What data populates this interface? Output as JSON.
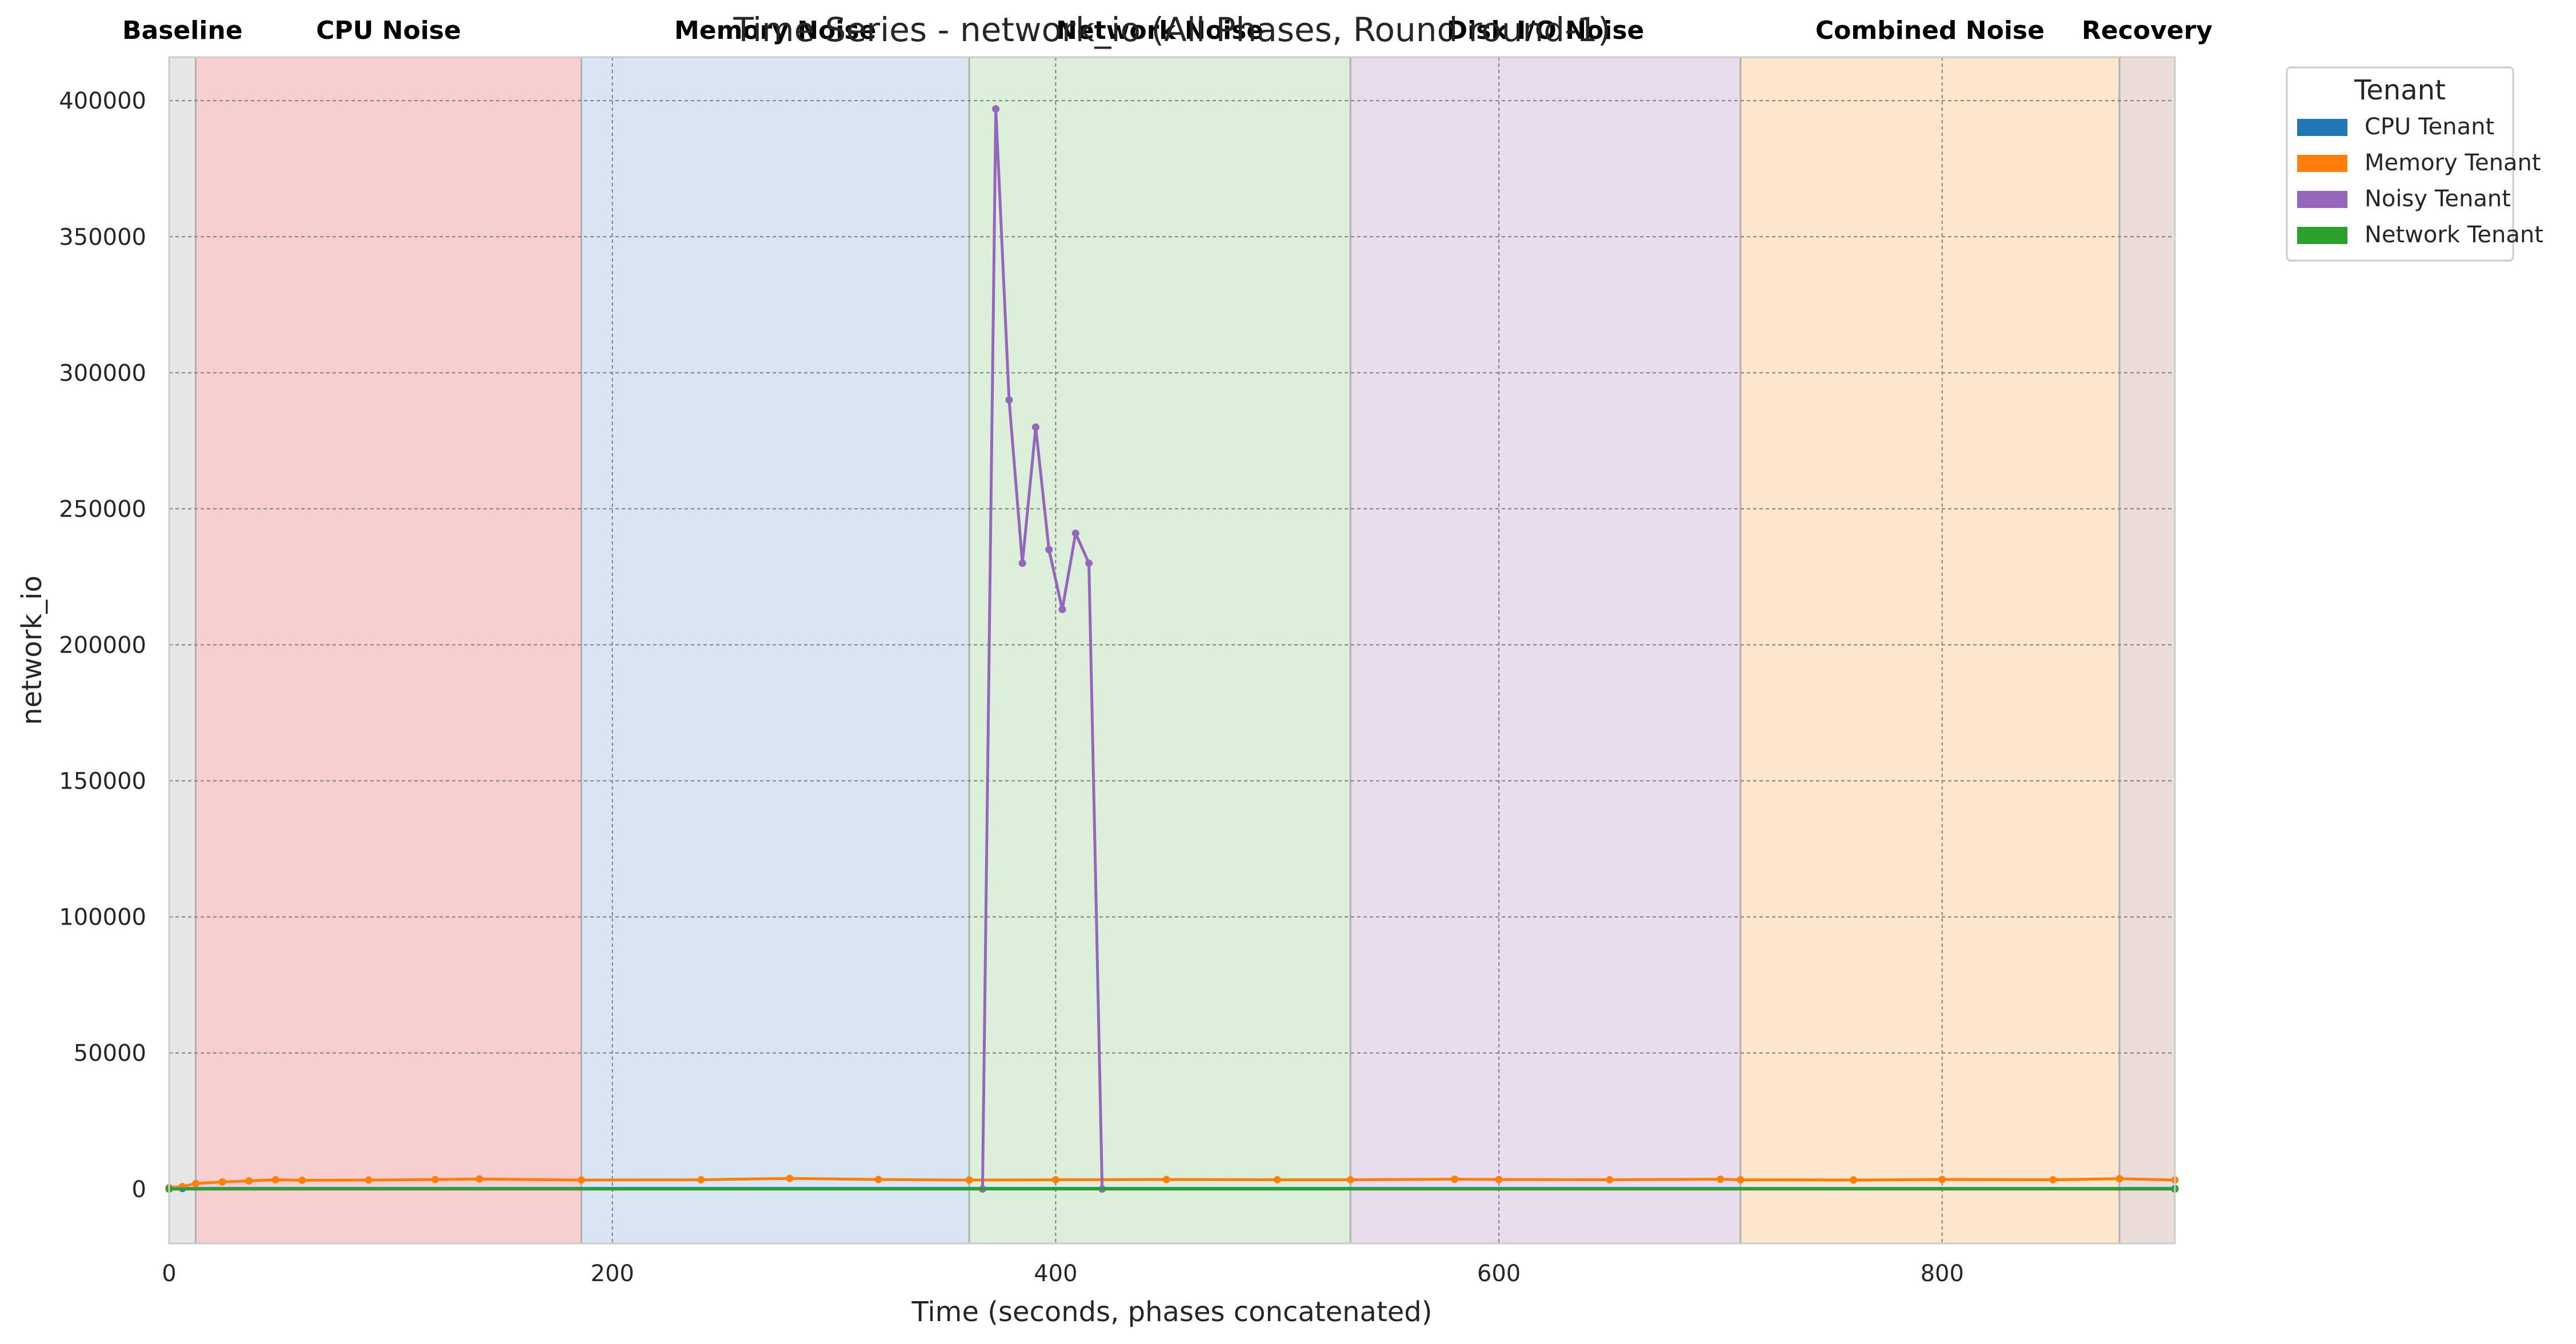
{
  "chart_data": {
    "type": "line",
    "title": "Time Series - network_io (All Phases, Round round-1)",
    "xlabel": "Time (seconds, phases concatenated)",
    "ylabel": "network_io",
    "xlim": [
      0,
      905
    ],
    "ylim": [
      -20000,
      416000
    ],
    "xticks": [
      0,
      200,
      400,
      600,
      800
    ],
    "yticks": [
      0,
      50000,
      100000,
      150000,
      200000,
      250000,
      300000,
      350000,
      400000
    ],
    "grid": true,
    "legend": {
      "title": "Tenant",
      "placement": "outside-top-right"
    },
    "phases": [
      {
        "name": "Baseline",
        "start": 0,
        "end": 12,
        "color": "#d9d9d9"
      },
      {
        "name": "CPU Noise",
        "start": 12,
        "end": 186,
        "color": "#f4b6b6"
      },
      {
        "name": "Memory Noise",
        "start": 186,
        "end": 361,
        "color": "#c2d8eb"
      },
      {
        "name": "Network Noise",
        "start": 361,
        "end": 533,
        "color": "#c8e6c5"
      },
      {
        "name": "Disk I/O Noise",
        "start": 533,
        "end": 709,
        "color": "#dcc9e4"
      },
      {
        "name": "Combined Noise",
        "start": 709,
        "end": 880,
        "color": "#fdd8b1"
      },
      {
        "name": "Recovery",
        "start": 880,
        "end": 905,
        "color": "#e2cbc3"
      }
    ],
    "series": [
      {
        "name": "CPU Tenant",
        "color": "#1f77b4",
        "points": [
          [
            0,
            0
          ],
          [
            6,
            200
          ],
          [
            905,
            200
          ]
        ]
      },
      {
        "name": "Memory Tenant",
        "color": "#ff7f0e",
        "points": [
          [
            0,
            500
          ],
          [
            6,
            900
          ],
          [
            12,
            2000
          ],
          [
            24,
            2600
          ],
          [
            36,
            3000
          ],
          [
            48,
            3400
          ],
          [
            60,
            3200
          ],
          [
            90,
            3300
          ],
          [
            120,
            3500
          ],
          [
            140,
            3700
          ],
          [
            186,
            3300
          ],
          [
            240,
            3400
          ],
          [
            280,
            3900
          ],
          [
            320,
            3500
          ],
          [
            361,
            3300
          ],
          [
            400,
            3400
          ],
          [
            450,
            3500
          ],
          [
            500,
            3400
          ],
          [
            533,
            3400
          ],
          [
            580,
            3600
          ],
          [
            600,
            3500
          ],
          [
            650,
            3400
          ],
          [
            700,
            3600
          ],
          [
            709,
            3400
          ],
          [
            760,
            3300
          ],
          [
            800,
            3500
          ],
          [
            850,
            3400
          ],
          [
            880,
            3800
          ],
          [
            905,
            3300
          ]
        ]
      },
      {
        "name": "Noisy Tenant",
        "color": "#9467bd",
        "points": [
          [
            0,
            0
          ],
          [
            367,
            0
          ],
          [
            373,
            397000
          ],
          [
            379,
            290000
          ],
          [
            385,
            230000
          ],
          [
            391,
            280000
          ],
          [
            397,
            235000
          ],
          [
            403,
            213000
          ],
          [
            409,
            241000
          ],
          [
            415,
            230000
          ],
          [
            421,
            0
          ],
          [
            905,
            0
          ]
        ]
      },
      {
        "name": "Network Tenant",
        "color": "#2ca02c",
        "points": [
          [
            0,
            0
          ],
          [
            905,
            0
          ]
        ]
      }
    ]
  }
}
